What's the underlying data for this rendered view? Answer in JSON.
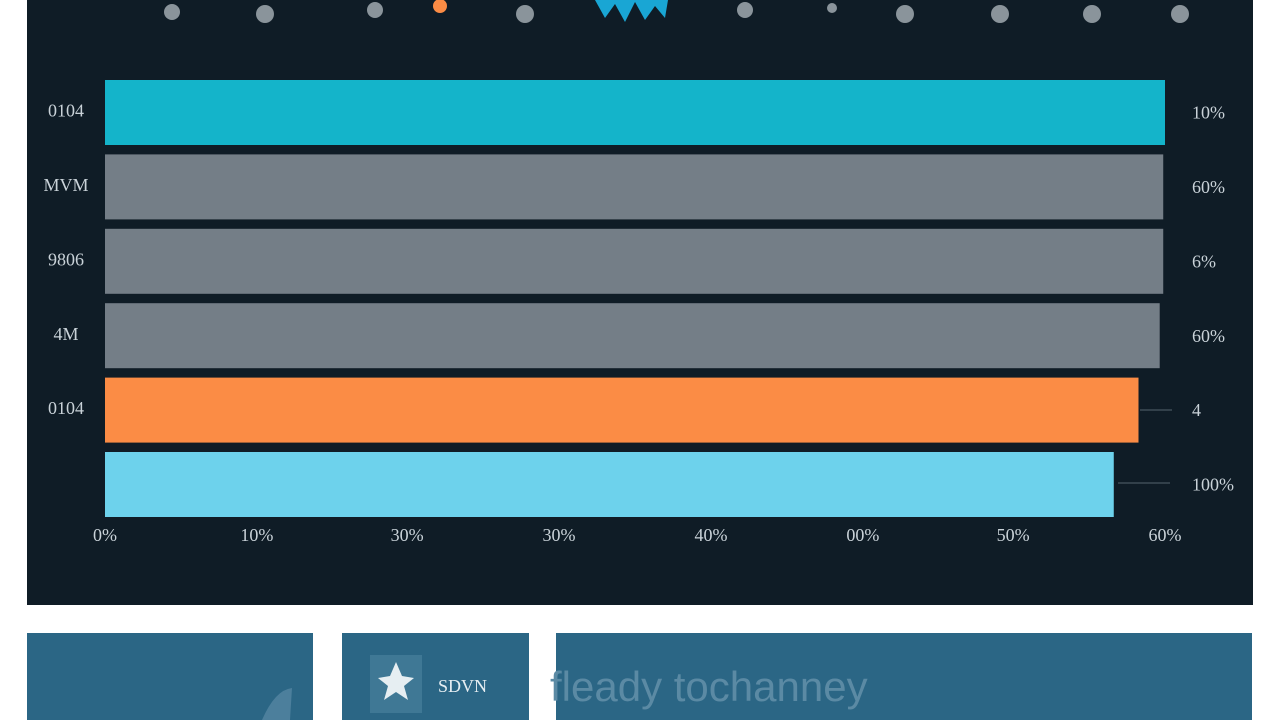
{
  "chart_data": {
    "type": "bar",
    "orientation": "horizontal",
    "categories": [
      "0104",
      "MVM",
      "9806",
      "4M",
      "0104",
      null
    ],
    "values": [
      60,
      59.9,
      59.9,
      59.7,
      58.5,
      57.1
    ],
    "colors": [
      "#14b4ca",
      "#747e87",
      "#747e87",
      "#747e87",
      "#fb8c45",
      "#6dd2ec"
    ],
    "right_labels": [
      "10%",
      "60%",
      "6%",
      "60%",
      "4",
      "100%"
    ],
    "xlim": [
      0,
      60
    ],
    "xticks": [
      {
        "value": 0,
        "label": "0%"
      },
      {
        "value": 8.6,
        "label": "10%"
      },
      {
        "value": 17.1,
        "label": "30%"
      },
      {
        "value": 25.7,
        "label": "30%"
      },
      {
        "value": 34.3,
        "label": "40%"
      },
      {
        "value": 42.9,
        "label": "00%"
      },
      {
        "value": 51.4,
        "label": "50%"
      },
      {
        "value": 60,
        "label": "60%"
      }
    ]
  },
  "panels": {
    "middle": "SDVN",
    "right": "fleady tochanney"
  }
}
